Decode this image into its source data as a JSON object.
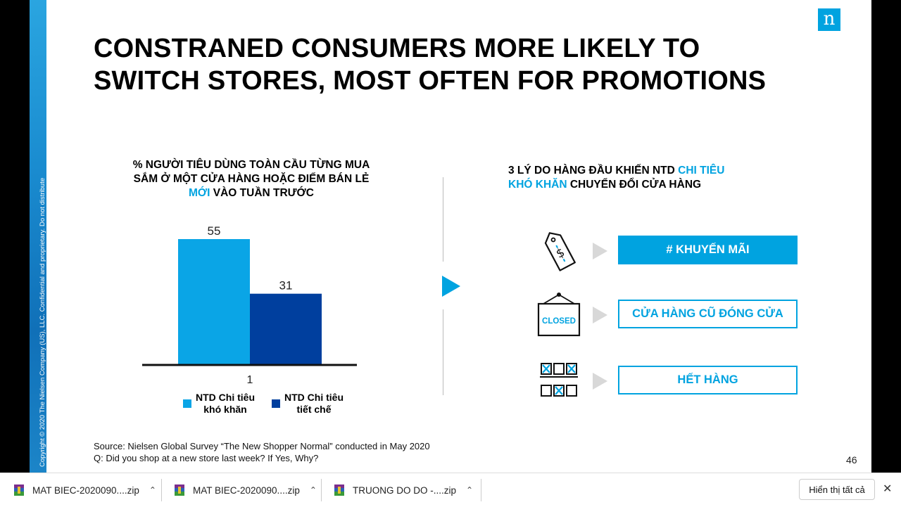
{
  "slide": {
    "sidebar_text": "Copyright © 2020 The Nielsen Company (US), LLC. Confidential and proprietary. Do not distribute",
    "logo_letter": "n",
    "title_line1": "CONSTRANED CONSUMERS MORE LIKELY TO",
    "title_line2": "SWITCH STORES, MOST OFTEN FOR PROMOTIONS",
    "chart_heading": {
      "line1": "% NGƯỜI TIÊU DÙNG TOÀN CẦU TỪNG MUA",
      "line2": "SẮM Ở MỘT CỬA HÀNG HOẶC ĐIỂM BÁN LẺ",
      "line3_highlight": "MỚI",
      "line3_rest": " VÀO TUẦN TRƯỚC"
    },
    "reasons_heading": {
      "part1": "3 LÝ DO HÀNG ĐẦU KHIẾN NTD ",
      "highlight1": "CHI TIÊU",
      "highlight2": "KHÓ KHĂN",
      "part2": " CHUYỂN ĐỔI CỬA HÀNG"
    },
    "reasons": [
      {
        "label": "# KHUYẾN MÃI",
        "icon": "price-tag-icon",
        "style": "filled"
      },
      {
        "label": "CỬA HÀNG CŨ ĐÓNG CỬA",
        "icon": "closed-sign-icon",
        "style": "outline"
      },
      {
        "label": "HẾT HÀNG",
        "icon": "empty-shelf-icon",
        "style": "outline"
      }
    ],
    "closed_sign_text": "CLOSED",
    "source_line1": "Source: Nielsen Global Survey “The New Shopper Normal” conducted in May 2020",
    "source_line2": "Q: Did you shop at a new store last week? If Yes, Why?",
    "page_number": "46",
    "colors": {
      "light_blue": "#00a3e0",
      "dark_blue": "#003f9e",
      "accent": "#00a3e0"
    }
  },
  "chart_data": {
    "type": "bar",
    "categories": [
      "1"
    ],
    "series": [
      {
        "name": "NTD Chi tiêu khó khăn",
        "values": [
          55
        ],
        "color": "#0aa5e6"
      },
      {
        "name": "NTD Chi tiêu tiết chế",
        "values": [
          31
        ],
        "color": "#003f9e"
      }
    ],
    "legend": [
      {
        "line1": "NTD Chi tiêu",
        "line2": "khó khăn"
      },
      {
        "line1": "NTD Chi tiêu",
        "line2": "tiết chế"
      }
    ],
    "ylim": [
      0,
      55
    ],
    "grid": false,
    "legend_position": "bottom"
  },
  "download_bar": {
    "items": [
      {
        "name": "MAT BIEC-2020090....zip"
      },
      {
        "name": "MAT BIEC-2020090....zip"
      },
      {
        "name": "TRUONG DO DO -....zip"
      }
    ],
    "show_all_label": "Hiển thị tất cả",
    "close_symbol": "✕"
  }
}
